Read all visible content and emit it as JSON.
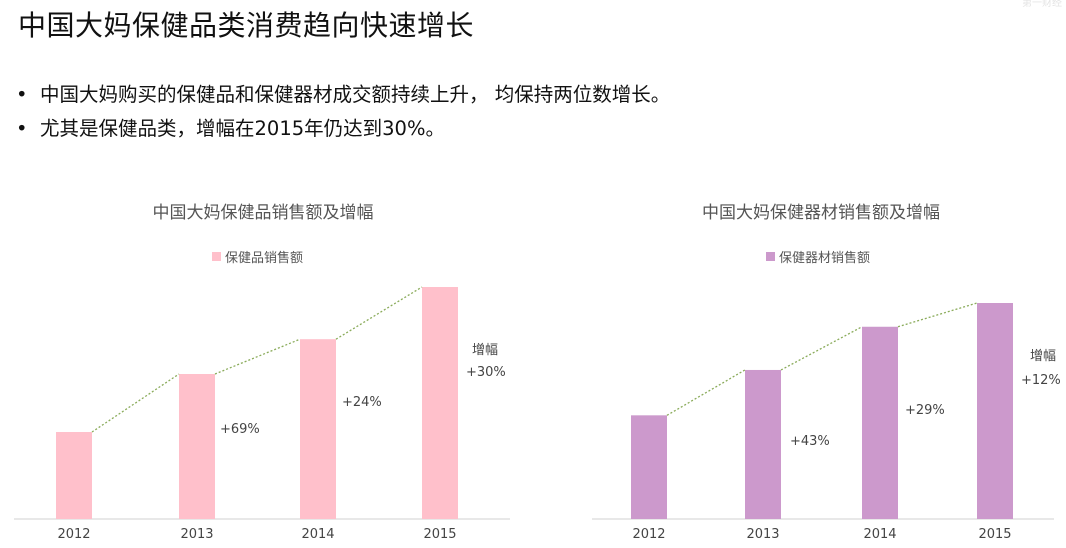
{
  "watermark": "第一财经",
  "title": "中国大妈保健品类消费趋向快速增长",
  "bullets": [
    "中国大妈购买的保健品和保健器材成交额持续上升， 均保持两位数增长。",
    "尤其是保健品类，增幅在2015年仍达到30%。"
  ],
  "chart_data": [
    {
      "type": "bar",
      "title": "中国大妈保健品销售额及增幅",
      "categories": [
        "2012",
        "2013",
        "2014",
        "2015"
      ],
      "series": [
        {
          "name": "保健品销售额",
          "values": [
            30,
            50,
            62,
            80
          ]
        }
      ],
      "growth_label": "增幅",
      "growth": [
        "+69%",
        "+24%",
        "+30%"
      ],
      "trend_line": true,
      "color": "#ffc0cb",
      "line_color": "#8aab5a",
      "legend_position": "top-center",
      "grid": false
    },
    {
      "type": "bar",
      "title": "中国大妈保健器材销售额及增幅",
      "categories": [
        "2012",
        "2013",
        "2014",
        "2015"
      ],
      "series": [
        {
          "name": "保健器材销售额",
          "values": [
            48,
            69,
            89,
            100
          ]
        }
      ],
      "growth_label": "增幅",
      "growth": [
        "+43%",
        "+29%",
        "+12%"
      ],
      "trend_line": true,
      "color": "#cc99cc",
      "line_color": "#8aab5a",
      "legend_position": "top-center",
      "grid": false
    }
  ]
}
